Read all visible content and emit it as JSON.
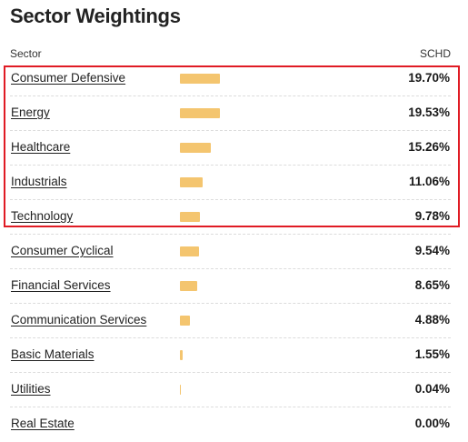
{
  "title": "Sector Weightings",
  "header": {
    "sector": "Sector",
    "fund": "SCHD"
  },
  "colors": {
    "bar": "#f4c56f",
    "highlight": "#e01b24"
  },
  "sectors": [
    {
      "label": "Consumer Defensive",
      "value": "19.70%",
      "weight": 19.7
    },
    {
      "label": "Energy",
      "value": "19.53%",
      "weight": 19.53
    },
    {
      "label": "Healthcare",
      "value": "15.26%",
      "weight": 15.26
    },
    {
      "label": "Industrials",
      "value": "11.06%",
      "weight": 11.06
    },
    {
      "label": "Technology",
      "value": "9.78%",
      "weight": 9.78
    },
    {
      "label": "Consumer Cyclical",
      "value": "9.54%",
      "weight": 9.54
    },
    {
      "label": "Financial Services",
      "value": "8.65%",
      "weight": 8.65
    },
    {
      "label": "Communication Services",
      "value": "4.88%",
      "weight": 4.88
    },
    {
      "label": "Basic Materials",
      "value": "1.55%",
      "weight": 1.55
    },
    {
      "label": "Utilities",
      "value": "0.04%",
      "weight": 0.04
    },
    {
      "label": "Real Estate",
      "value": "0.00%",
      "weight": 0.0
    }
  ]
}
